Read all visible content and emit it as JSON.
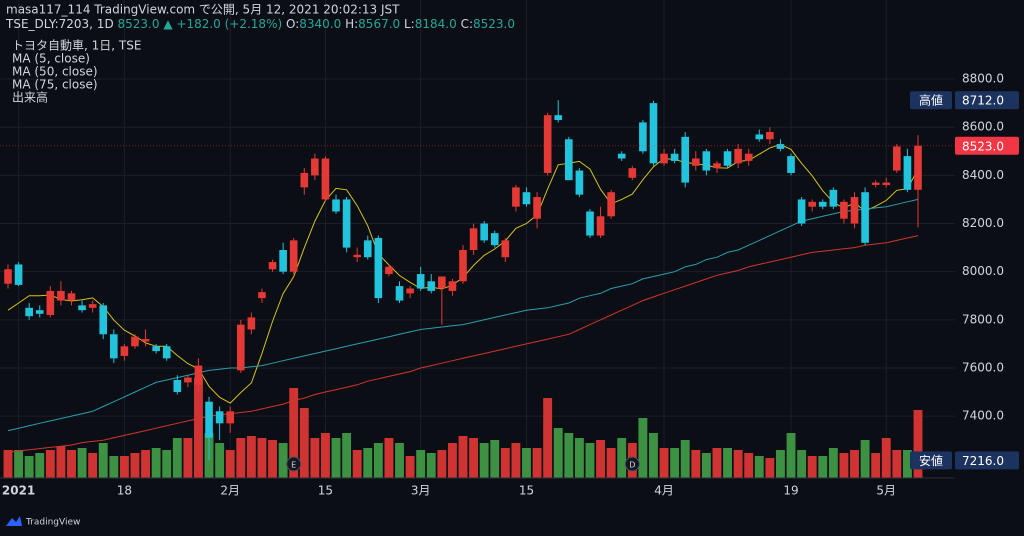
{
  "chart_data": {
    "type": "candlestick",
    "header": {
      "publisher": "masa117_114 TradingView.com で公開, 5月 12, 2021 20:02:13 JST",
      "symbol": "TSE_DLY:7203, 1D",
      "price": "8523.0",
      "change": "▲ +182.0 (+2.18%)",
      "ohlc": [
        {
          "key": "O:",
          "value": "8340.0"
        },
        {
          "key": "H:",
          "value": "8567.0"
        },
        {
          "key": "L:",
          "value": "8184.0"
        },
        {
          "key": "C:",
          "value": "8523.0"
        }
      ]
    },
    "categories": [
      null,
      "2021",
      null,
      null,
      null,
      null,
      null,
      null,
      null,
      null,
      null,
      "18",
      null,
      null,
      null,
      null,
      null,
      null,
      null,
      null,
      null,
      "2月",
      null,
      null,
      null,
      null,
      null,
      null,
      null,
      null,
      "15",
      null,
      null,
      null,
      null,
      null,
      null,
      null,
      null,
      "3月",
      null,
      null,
      null,
      null,
      null,
      null,
      null,
      null,
      null,
      "15",
      null,
      null,
      null,
      null,
      null,
      null,
      null,
      null,
      null,
      null,
      null,
      null,
      "4月",
      null,
      null,
      null,
      null,
      null,
      null,
      null,
      null,
      null,
      null,
      null,
      "19",
      null,
      null,
      null,
      null,
      null,
      null,
      null,
      null,
      "5月",
      null,
      null,
      null
    ],
    "candles": {
      "name": "トヨタ自動車, 1日, TSE",
      "up_color": "#e53935",
      "down_color": "#22c3dd",
      "open": [
        7950,
        8030,
        7850,
        7840,
        7820,
        7880,
        7880,
        7860,
        7850,
        7860,
        7740,
        7650,
        7690,
        7710,
        7690,
        7690,
        7550,
        7540,
        7530,
        7460,
        7420,
        7370,
        7590,
        7760,
        7890,
        8010,
        8090,
        8000,
        8350,
        8400,
        8300,
        8300,
        8300,
        8060,
        8130,
        8140,
        7990,
        7940,
        7910,
        7990,
        7960,
        7930,
        7920,
        7960,
        8090,
        8200,
        8160,
        8060,
        8270,
        8330,
        8220,
        8410,
        8650,
        8550,
        8420,
        8250,
        8150,
        8230,
        8490,
        8390,
        8620,
        8700,
        8450,
        8490,
        8560,
        8440,
        8500,
        8430,
        8500,
        8450,
        8460,
        8570,
        8550,
        8530,
        8480,
        8300,
        8270,
        8290,
        8340,
        8220,
        8200,
        8330,
        8360,
        8360,
        8420,
        8480,
        8340
      ],
      "high": [
        8030,
        8040,
        7870,
        7860,
        7940,
        7960,
        7920,
        7880,
        7880,
        7870,
        7760,
        7700,
        7740,
        7760,
        7700,
        7700,
        7570,
        7570,
        7640,
        7480,
        7440,
        7440,
        7800,
        7830,
        7930,
        8050,
        8120,
        8140,
        8430,
        8490,
        8480,
        8320,
        8310,
        8100,
        8150,
        8150,
        8030,
        7960,
        7940,
        8020,
        7990,
        7980,
        7970,
        8110,
        8200,
        8210,
        8170,
        8140,
        8360,
        8350,
        8330,
        8660,
        8712,
        8560,
        8430,
        8260,
        8270,
        8340,
        8500,
        8440,
        8630,
        8710,
        8510,
        8510,
        8580,
        8500,
        8510,
        8460,
        8510,
        8530,
        8510,
        8590,
        8600,
        8550,
        8490,
        8310,
        8300,
        8300,
        8350,
        8300,
        8330,
        8350,
        8380,
        8390,
        8530,
        8510,
        8567
      ],
      "low": [
        7930,
        7940,
        7800,
        7810,
        7810,
        7860,
        7860,
        7830,
        7830,
        7720,
        7620,
        7630,
        7680,
        7690,
        7660,
        7630,
        7490,
        7520,
        7500,
        7216,
        7300,
        7330,
        7580,
        7740,
        7870,
        8000,
        7990,
        7990,
        8320,
        8380,
        8290,
        8240,
        8080,
        8040,
        8050,
        7870,
        7980,
        7870,
        7890,
        7920,
        7910,
        7780,
        7900,
        7950,
        8070,
        8120,
        8100,
        8040,
        8250,
        8270,
        8180,
        8400,
        8620,
        8380,
        8310,
        8140,
        8140,
        8220,
        8460,
        8380,
        8490,
        8440,
        8440,
        8450,
        8350,
        8420,
        8400,
        8410,
        8430,
        8430,
        8440,
        8540,
        8530,
        8500,
        8400,
        8190,
        8250,
        8260,
        8260,
        8200,
        8180,
        8110,
        8350,
        8350,
        8410,
        8330,
        8184
      ],
      "close": [
        8010,
        7945,
        7815,
        7825,
        7920,
        7920,
        7910,
        7840,
        7865,
        7740,
        7640,
        7690,
        7730,
        7720,
        7670,
        7640,
        7500,
        7560,
        7610,
        7310,
        7370,
        7420,
        7780,
        7810,
        7915,
        8040,
        8000,
        8130,
        8410,
        8470,
        8470,
        8250,
        8100,
        8070,
        8060,
        7890,
        8020,
        7880,
        7930,
        7930,
        7920,
        7980,
        7960,
        8090,
        8180,
        8130,
        8110,
        8130,
        8350,
        8280,
        8310,
        8650,
        8630,
        8380,
        8320,
        8150,
        8230,
        8330,
        8470,
        8430,
        8500,
        8450,
        8490,
        8460,
        8370,
        8470,
        8420,
        8450,
        8440,
        8510,
        8490,
        8550,
        8580,
        8510,
        8410,
        8200,
        8290,
        8270,
        8270,
        8290,
        8310,
        8120,
        8370,
        8370,
        8520,
        8340,
        8523
      ]
    },
    "lines": [
      {
        "name": "MA (5, close)",
        "color": "#d4c21c",
        "values": [
          7840,
          7870,
          7900,
          7900,
          7903,
          7885,
          7878,
          7883,
          7891,
          7855,
          7799,
          7757,
          7733,
          7704,
          7690,
          7690,
          7652,
          7618,
          7596,
          7524,
          7478,
          7454,
          7498,
          7538,
          7661,
          7793,
          7909,
          7979,
          8099,
          8210,
          8296,
          8346,
          8340,
          8274,
          8190,
          8074,
          8028,
          7984,
          7956,
          7930,
          7936,
          7928,
          7944,
          7976,
          8026,
          8068,
          8094,
          8128,
          8180,
          8200,
          8236,
          8344,
          8444,
          8450,
          8458,
          8426,
          8342,
          8282,
          8300,
          8322,
          8382,
          8436,
          8470,
          8466,
          8454,
          8448,
          8442,
          8432,
          8430,
          8458,
          8462,
          8488,
          8514,
          8528,
          8508,
          8450,
          8398,
          8336,
          8288,
          8264,
          8286,
          8252,
          8272,
          8296,
          8338,
          8344,
          8425
        ]
      },
      {
        "name": "MA (50, close)",
        "color": "#2a9fb0",
        "values": [
          7340,
          7350,
          7360,
          7370,
          7380,
          7390,
          7400,
          7410,
          7420,
          7440,
          7460,
          7480,
          7500,
          7520,
          7540,
          7550,
          7560,
          7570,
          7580,
          7590,
          7595,
          7600,
          7600,
          7605,
          7610,
          7620,
          7630,
          7640,
          7650,
          7660,
          7670,
          7680,
          7690,
          7700,
          7710,
          7720,
          7730,
          7740,
          7750,
          7760,
          7765,
          7770,
          7775,
          7780,
          7790,
          7800,
          7810,
          7820,
          7830,
          7840,
          7845,
          7850,
          7860,
          7870,
          7890,
          7900,
          7910,
          7930,
          7940,
          7950,
          7970,
          7980,
          7990,
          8000,
          8020,
          8030,
          8050,
          8060,
          8080,
          8090,
          8110,
          8130,
          8150,
          8170,
          8190,
          8210,
          8220,
          8230,
          8240,
          8250,
          8255,
          8260,
          8265,
          8270,
          8280,
          8290,
          8300
        ]
      },
      {
        "name": "MA (75, close)",
        "color": "#d0352c",
        "values": [
          7250,
          7255,
          7260,
          7265,
          7270,
          7275,
          7280,
          7290,
          7295,
          7300,
          7310,
          7320,
          7330,
          7340,
          7350,
          7360,
          7370,
          7380,
          7390,
          7400,
          7405,
          7410,
          7415,
          7420,
          7430,
          7440,
          7450,
          7465,
          7475,
          7490,
          7500,
          7510,
          7520,
          7530,
          7545,
          7555,
          7565,
          7575,
          7585,
          7600,
          7610,
          7620,
          7630,
          7640,
          7650,
          7660,
          7670,
          7680,
          7690,
          7700,
          7710,
          7720,
          7730,
          7740,
          7760,
          7780,
          7800,
          7820,
          7840,
          7860,
          7880,
          7895,
          7910,
          7925,
          7940,
          7955,
          7970,
          7985,
          7995,
          8005,
          8020,
          8030,
          8040,
          8050,
          8060,
          8070,
          8080,
          8085,
          8090,
          8095,
          8100,
          8110,
          8115,
          8120,
          8130,
          8140,
          8150
        ]
      }
    ],
    "volume": {
      "name": "出来高",
      "up_color": "#e53935",
      "down_color": "#43a047",
      "values": [
        28,
        28,
        22,
        25,
        28,
        32,
        28,
        30,
        25,
        35,
        22,
        22,
        25,
        28,
        30,
        28,
        40,
        40,
        100,
        45,
        35,
        28,
        40,
        42,
        40,
        38,
        35,
        90,
        70,
        40,
        45,
        40,
        45,
        28,
        30,
        35,
        40,
        35,
        22,
        28,
        25,
        28,
        35,
        42,
        40,
        35,
        38,
        30,
        35,
        30,
        30,
        80,
        50,
        45,
        40,
        35,
        38,
        30,
        40,
        35,
        60,
        45,
        30,
        30,
        38,
        28,
        25,
        30,
        30,
        28,
        25,
        22,
        20,
        28,
        45,
        28,
        22,
        22,
        30,
        25,
        28,
        38,
        25,
        40,
        28,
        28,
        68
      ]
    },
    "event_markers": [
      null,
      null,
      null,
      null,
      null,
      null,
      null,
      null,
      null,
      null,
      null,
      null,
      null,
      null,
      null,
      null,
      null,
      null,
      null,
      null,
      null,
      null,
      null,
      null,
      null,
      null,
      null,
      "E",
      null,
      null,
      null,
      null,
      null,
      null,
      null,
      null,
      null,
      null,
      null,
      null,
      null,
      null,
      null,
      null,
      null,
      null,
      null,
      null,
      null,
      null,
      null,
      null,
      null,
      null,
      null,
      null,
      null,
      null,
      null,
      "D",
      null,
      null,
      null,
      null,
      null,
      null,
      null,
      null,
      null,
      null,
      null,
      null,
      null,
      null,
      null,
      null,
      null,
      null,
      null,
      null,
      null,
      null,
      null,
      null,
      null,
      null,
      null
    ],
    "ylim": [
      7143,
      8983
    ],
    "yticks": [
      {
        "value": 7400,
        "label": "7400.0"
      },
      {
        "value": 7600,
        "label": "7600.0"
      },
      {
        "value": 7800,
        "label": "7800.0"
      },
      {
        "value": 8000,
        "label": "8000.0"
      },
      {
        "value": 8200,
        "label": "8200.0"
      },
      {
        "value": 8400,
        "label": "8400.0"
      },
      {
        "value": 8600,
        "label": "8600.0"
      },
      {
        "value": 8800,
        "label": "8800.0"
      }
    ],
    "grid": true,
    "high_marker": {
      "label": "高値",
      "value": 8712,
      "value_label": "8712.0"
    },
    "low_marker": {
      "label": "安値",
      "value": 7216,
      "value_label": "7216.0"
    },
    "last_price": {
      "value": 8523,
      "label": "8523.0",
      "color": "#f23645"
    },
    "footer": "TradingView"
  }
}
